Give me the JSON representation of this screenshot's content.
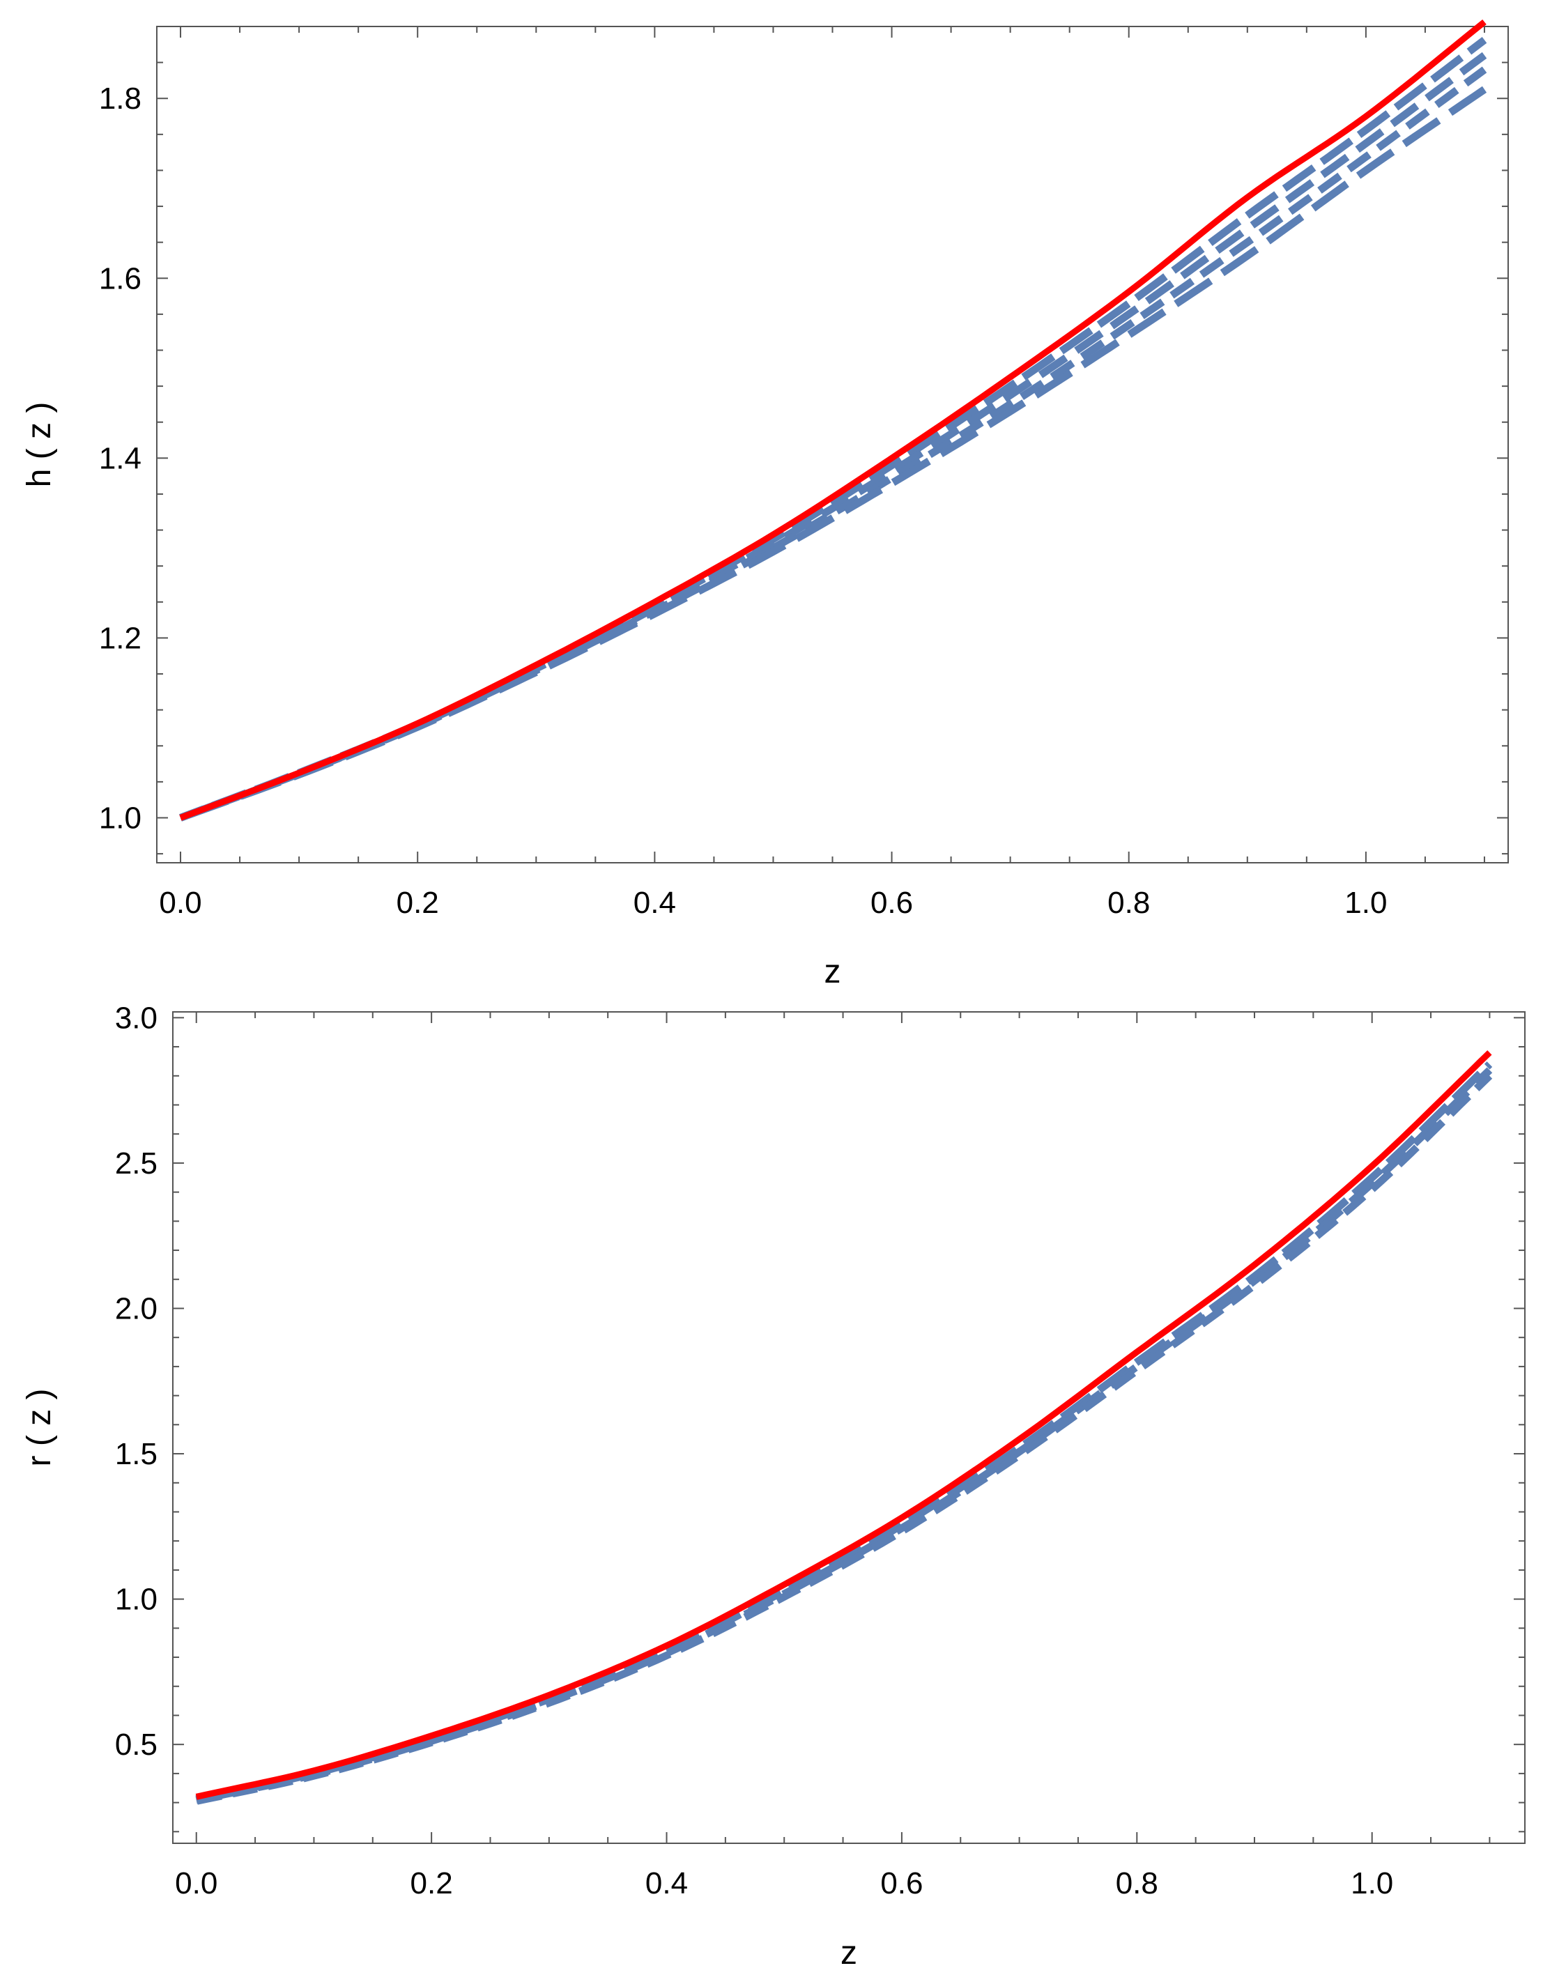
{
  "colors": {
    "model_line": "#ff0000",
    "sample_lines": "#5b7fb5",
    "frame": "#555555"
  },
  "chart_data": [
    {
      "type": "line",
      "id": "top",
      "title": "",
      "xlabel": "z",
      "ylabel": "h ( z )",
      "xlim": [
        -0.02,
        1.12
      ],
      "ylim": [
        0.95,
        1.88
      ],
      "xticks": [
        0.0,
        0.2,
        0.4,
        0.6,
        0.8,
        1.0
      ],
      "xtick_labels": [
        "0.0",
        "0.2",
        "0.4",
        "0.6",
        "0.8",
        "1.0"
      ],
      "yticks": [
        1.0,
        1.2,
        1.4,
        1.6,
        1.8
      ],
      "ytick_labels": [
        "1.0",
        "1.2",
        "1.4",
        "1.6",
        "1.8"
      ],
      "grid": false,
      "x": [
        0.0,
        0.1,
        0.2,
        0.3,
        0.4,
        0.5,
        0.6,
        0.7,
        0.8,
        0.9,
        1.0,
        1.1
      ],
      "series": [
        {
          "style": "solid",
          "color": "#ff0000",
          "values": [
            1.0,
            1.05,
            1.105,
            1.17,
            1.24,
            1.315,
            1.4,
            1.49,
            1.585,
            1.69,
            1.78,
            1.885
          ]
        },
        {
          "style": "dashed",
          "color": "#5b7fb5",
          "values": [
            1.0,
            1.05,
            1.104,
            1.168,
            1.236,
            1.31,
            1.392,
            1.48,
            1.572,
            1.67,
            1.765,
            1.865
          ]
        },
        {
          "style": "dashed",
          "color": "#5b7fb5",
          "values": [
            1.0,
            1.049,
            1.103,
            1.166,
            1.233,
            1.305,
            1.385,
            1.47,
            1.56,
            1.655,
            1.75,
            1.848
          ]
        },
        {
          "style": "dashed",
          "color": "#5b7fb5",
          "values": [
            1.0,
            1.049,
            1.102,
            1.164,
            1.23,
            1.3,
            1.378,
            1.46,
            1.548,
            1.64,
            1.735,
            1.832
          ]
        },
        {
          "style": "dashed",
          "color": "#5b7fb5",
          "values": [
            1.0,
            1.048,
            1.101,
            1.162,
            1.227,
            1.296,
            1.372,
            1.452,
            1.537,
            1.625,
            1.72,
            1.81
          ]
        }
      ]
    },
    {
      "type": "line",
      "id": "bottom",
      "title": "",
      "xlabel": "z",
      "ylabel": "r ( z )",
      "xlim": [
        -0.02,
        1.13
      ],
      "ylim": [
        0.16,
        3.02
      ],
      "xticks": [
        0.0,
        0.2,
        0.4,
        0.6,
        0.8,
        1.0
      ],
      "xtick_labels": [
        "0.0",
        "0.2",
        "0.4",
        "0.6",
        "0.8",
        "1.0"
      ],
      "yticks": [
        0.5,
        1.0,
        1.5,
        2.0,
        2.5,
        3.0
      ],
      "ytick_labels": [
        "0.5",
        "1.0",
        "1.5",
        "2.0",
        "2.5",
        "3.0"
      ],
      "grid": false,
      "x": [
        0.0,
        0.1,
        0.2,
        0.3,
        0.4,
        0.5,
        0.6,
        0.7,
        0.8,
        0.9,
        1.0,
        1.1
      ],
      "series": [
        {
          "style": "solid",
          "color": "#ff0000",
          "values": [
            0.32,
            0.41,
            0.53,
            0.67,
            0.84,
            1.05,
            1.28,
            1.55,
            1.85,
            2.15,
            2.49,
            2.88
          ]
        },
        {
          "style": "dashed",
          "color": "#5b7fb5",
          "values": [
            0.312,
            0.4,
            0.518,
            0.656,
            0.822,
            1.028,
            1.255,
            1.52,
            1.815,
            2.11,
            2.45,
            2.84
          ]
        },
        {
          "style": "dashed",
          "color": "#5b7fb5",
          "values": [
            0.308,
            0.396,
            0.512,
            0.649,
            0.814,
            1.018,
            1.244,
            1.507,
            1.8,
            2.095,
            2.43,
            2.82
          ]
        },
        {
          "style": "dashed",
          "color": "#5b7fb5",
          "values": [
            0.305,
            0.392,
            0.507,
            0.643,
            0.806,
            1.008,
            1.233,
            1.495,
            1.786,
            2.08,
            2.41,
            2.8
          ]
        }
      ]
    }
  ]
}
